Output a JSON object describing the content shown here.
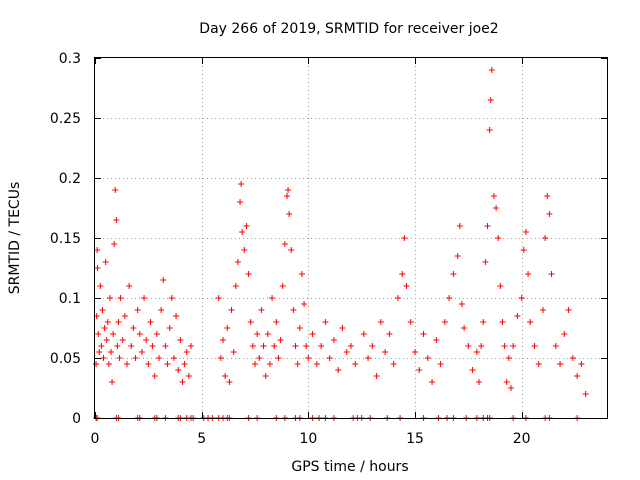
{
  "chart_data": {
    "type": "scatter",
    "title": "Day 266 of 2019, SRMTID for receiver joe2",
    "xlabel": "GPS time / hours",
    "ylabel": "SRMTID / TECUs",
    "xlim": [
      0,
      24
    ],
    "ylim": [
      0,
      0.3
    ],
    "xticks": [
      0,
      5,
      10,
      15,
      20
    ],
    "xtick_labels": [
      "0",
      "5",
      "10",
      "15",
      "20"
    ],
    "yticks": [
      0,
      0.05,
      0.1,
      0.15,
      0.2,
      0.25,
      0.3
    ],
    "ytick_labels": [
      "0",
      "0.05",
      "0.1",
      "0.15",
      "0.2",
      "0.25",
      "0.3"
    ],
    "grid": true,
    "marker": "+",
    "color": "#ff0000",
    "series": [
      {
        "name": "SRMTID",
        "points": [
          [
            0.05,
            0.045
          ],
          [
            0.08,
            0.085
          ],
          [
            0.1,
            0.14
          ],
          [
            0.12,
            0.125
          ],
          [
            0.15,
            0.07
          ],
          [
            0.2,
            0.055
          ],
          [
            0.25,
            0.11
          ],
          [
            0.3,
            0.06
          ],
          [
            0.35,
            0.09
          ],
          [
            0.4,
            0.05
          ],
          [
            0.45,
            0.075
          ],
          [
            0.5,
            0.13
          ],
          [
            0.55,
            0.065
          ],
          [
            0.6,
            0.08
          ],
          [
            0.65,
            0.045
          ],
          [
            0.7,
            0.1
          ],
          [
            0.75,
            0.055
          ],
          [
            0.8,
            0.03
          ],
          [
            0.85,
            0.07
          ],
          [
            0.9,
            0.145
          ],
          [
            0.95,
            0.19
          ],
          [
            1.0,
            0.165
          ],
          [
            1.05,
            0.06
          ],
          [
            1.1,
            0.08
          ],
          [
            1.15,
            0.05
          ],
          [
            1.2,
            0.1
          ],
          [
            1.3,
            0.065
          ],
          [
            1.4,
            0.085
          ],
          [
            1.5,
            0.045
          ],
          [
            1.6,
            0.11
          ],
          [
            1.7,
            0.06
          ],
          [
            1.8,
            0.075
          ],
          [
            1.9,
            0.05
          ],
          [
            2.0,
            0.09
          ],
          [
            2.1,
            0.07
          ],
          [
            2.2,
            0.055
          ],
          [
            2.3,
            0.1
          ],
          [
            2.4,
            0.065
          ],
          [
            2.5,
            0.045
          ],
          [
            2.6,
            0.08
          ],
          [
            2.7,
            0.06
          ],
          [
            2.8,
            0.035
          ],
          [
            2.9,
            0.07
          ],
          [
            3.0,
            0.05
          ],
          [
            3.1,
            0.09
          ],
          [
            3.2,
            0.115
          ],
          [
            3.3,
            0.06
          ],
          [
            3.4,
            0.045
          ],
          [
            3.5,
            0.075
          ],
          [
            3.6,
            0.1
          ],
          [
            3.7,
            0.05
          ],
          [
            3.8,
            0.085
          ],
          [
            3.9,
            0.04
          ],
          [
            4.0,
            0.065
          ],
          [
            4.1,
            0.03
          ],
          [
            4.2,
            0.045
          ],
          [
            4.3,
            0.055
          ],
          [
            4.4,
            0.035
          ],
          [
            4.5,
            0.06
          ],
          [
            5.8,
            0.1
          ],
          [
            5.9,
            0.05
          ],
          [
            6.0,
            0.065
          ],
          [
            6.1,
            0.035
          ],
          [
            6.2,
            0.075
          ],
          [
            6.3,
            0.03
          ],
          [
            6.4,
            0.09
          ],
          [
            6.5,
            0.055
          ],
          [
            6.6,
            0.11
          ],
          [
            6.7,
            0.13
          ],
          [
            6.8,
            0.18
          ],
          [
            6.85,
            0.195
          ],
          [
            6.9,
            0.155
          ],
          [
            7.0,
            0.14
          ],
          [
            7.1,
            0.16
          ],
          [
            7.2,
            0.12
          ],
          [
            7.3,
            0.08
          ],
          [
            7.4,
            0.06
          ],
          [
            7.5,
            0.045
          ],
          [
            7.6,
            0.07
          ],
          [
            7.7,
            0.05
          ],
          [
            7.8,
            0.09
          ],
          [
            7.9,
            0.06
          ],
          [
            8.0,
            0.035
          ],
          [
            8.1,
            0.07
          ],
          [
            8.2,
            0.045
          ],
          [
            8.3,
            0.1
          ],
          [
            8.4,
            0.06
          ],
          [
            8.5,
            0.08
          ],
          [
            8.6,
            0.05
          ],
          [
            8.7,
            0.065
          ],
          [
            8.8,
            0.11
          ],
          [
            8.9,
            0.145
          ],
          [
            9.0,
            0.185
          ],
          [
            9.05,
            0.19
          ],
          [
            9.1,
            0.17
          ],
          [
            9.2,
            0.14
          ],
          [
            9.3,
            0.09
          ],
          [
            9.4,
            0.06
          ],
          [
            9.5,
            0.045
          ],
          [
            9.6,
            0.075
          ],
          [
            9.7,
            0.12
          ],
          [
            9.8,
            0.095
          ],
          [
            9.9,
            0.06
          ],
          [
            10.0,
            0.05
          ],
          [
            10.2,
            0.07
          ],
          [
            10.4,
            0.045
          ],
          [
            10.6,
            0.06
          ],
          [
            10.8,
            0.08
          ],
          [
            11.0,
            0.05
          ],
          [
            11.2,
            0.065
          ],
          [
            11.4,
            0.04
          ],
          [
            11.6,
            0.075
          ],
          [
            11.8,
            0.055
          ],
          [
            12.0,
            0.06
          ],
          [
            12.2,
            0.045
          ],
          [
            12.6,
            0.07
          ],
          [
            12.8,
            0.05
          ],
          [
            13.0,
            0.06
          ],
          [
            13.2,
            0.035
          ],
          [
            13.4,
            0.08
          ],
          [
            13.6,
            0.055
          ],
          [
            13.8,
            0.07
          ],
          [
            14.0,
            0.045
          ],
          [
            14.2,
            0.1
          ],
          [
            14.4,
            0.12
          ],
          [
            14.5,
            0.15
          ],
          [
            14.6,
            0.11
          ],
          [
            14.8,
            0.08
          ],
          [
            15.0,
            0.055
          ],
          [
            15.2,
            0.04
          ],
          [
            15.4,
            0.07
          ],
          [
            15.6,
            0.05
          ],
          [
            15.8,
            0.03
          ],
          [
            16.0,
            0.065
          ],
          [
            16.2,
            0.045
          ],
          [
            16.4,
            0.08
          ],
          [
            16.6,
            0.1
          ],
          [
            16.8,
            0.12
          ],
          [
            17.0,
            0.135
          ],
          [
            17.1,
            0.16
          ],
          [
            17.2,
            0.095
          ],
          [
            17.3,
            0.075
          ],
          [
            17.5,
            0.06
          ],
          [
            17.7,
            0.04
          ],
          [
            17.9,
            0.055
          ],
          [
            18.0,
            0.03
          ],
          [
            18.1,
            0.06
          ],
          [
            18.2,
            0.08
          ],
          [
            18.3,
            0.13
          ],
          [
            18.4,
            0.16
          ],
          [
            18.5,
            0.24
          ],
          [
            18.55,
            0.265
          ],
          [
            18.6,
            0.29
          ],
          [
            18.7,
            0.185
          ],
          [
            18.8,
            0.175
          ],
          [
            18.9,
            0.15
          ],
          [
            19.0,
            0.11
          ],
          [
            19.1,
            0.08
          ],
          [
            19.2,
            0.06
          ],
          [
            19.3,
            0.03
          ],
          [
            19.4,
            0.05
          ],
          [
            19.5,
            0.025
          ],
          [
            19.6,
            0.06
          ],
          [
            19.8,
            0.085
          ],
          [
            20.0,
            0.1
          ],
          [
            20.1,
            0.14
          ],
          [
            20.2,
            0.155
          ],
          [
            20.3,
            0.12
          ],
          [
            20.4,
            0.08
          ],
          [
            20.6,
            0.06
          ],
          [
            20.8,
            0.045
          ],
          [
            21.0,
            0.09
          ],
          [
            21.1,
            0.15
          ],
          [
            21.2,
            0.185
          ],
          [
            21.3,
            0.17
          ],
          [
            21.4,
            0.12
          ],
          [
            21.6,
            0.06
          ],
          [
            21.8,
            0.045
          ],
          [
            22.0,
            0.07
          ],
          [
            22.2,
            0.09
          ],
          [
            22.4,
            0.05
          ],
          [
            22.6,
            0.035
          ],
          [
            22.8,
            0.045
          ],
          [
            23.0,
            0.02
          ]
        ]
      }
    ],
    "zero_markers_x": [
      0.05,
      0.1,
      1.0,
      1.1,
      2.0,
      2.1,
      2.8,
      2.9,
      3.3,
      3.9,
      4.0,
      4.3,
      4.5,
      4.6,
      5.1,
      5.3,
      5.5,
      5.8,
      6.0,
      6.2,
      6.3,
      7.2,
      7.6,
      8.5,
      8.9,
      9.4,
      9.6,
      10.2,
      10.5,
      10.8,
      11.2,
      12.1,
      12.3,
      12.5,
      12.9,
      13.7,
      14.3,
      15.4,
      16.1,
      16.5,
      16.8,
      17.4,
      17.9,
      18.2,
      18.4,
      18.5,
      19.6,
      20.2,
      21.1,
      21.3,
      22.6
    ]
  }
}
